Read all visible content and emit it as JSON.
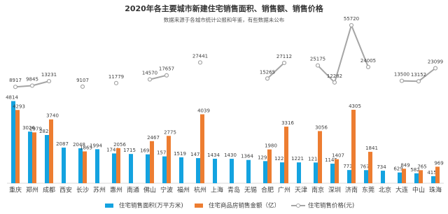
{
  "chart_data": {
    "type": "bar-line",
    "title": "2020年各主要城市新建住宅销售面积、销售额、销售价格",
    "subtitle": "数据来源于各城市统计公报和年鉴，有些数据未公布",
    "categories": [
      "重庆",
      "郑州",
      "成都",
      "西安",
      "长沙",
      "苏州",
      "惠州",
      "南通",
      "佛山",
      "宁波",
      "福州",
      "杭州",
      "上海",
      "青岛",
      "无锡",
      "合肥",
      "广州",
      "天津",
      "南京",
      "深圳",
      "济南",
      "东莞",
      "北京",
      "大连",
      "中山",
      "珠海"
    ],
    "series": [
      {
        "name": "住宅销售面积(万平方米)",
        "color": "#14a3e0",
        "type": "bar",
        "values": [
          4814,
          3026,
          2827,
          2087,
          2048,
          1994,
          1746,
          1715,
          1693,
          1573,
          1519,
          1472,
          1434,
          1430,
          1364,
          1297,
          1223,
          1221,
          1214,
          1145,
          773,
          767,
          734,
          629,
          582,
          415
        ]
      },
      {
        "name": "住宅商品房销售金额（亿）",
        "color": "#ed7d31",
        "type": "bar",
        "values": [
          4293,
          2979,
          3740,
          null,
          1865,
          null,
          2056,
          null,
          2467,
          2775,
          null,
          4039,
          null,
          null,
          null,
          1980,
          3316,
          null,
          3056,
          1407,
          4305,
          1841,
          null,
          849,
          765,
          969
        ]
      },
      {
        "name": "住宅销售价格(元)",
        "color": "#a5a5a5",
        "type": "line",
        "axis": "y2",
        "values": [
          8917,
          9845,
          13231,
          null,
          9107,
          null,
          11779,
          null,
          14570,
          17657,
          null,
          27441,
          null,
          null,
          null,
          15265,
          27112,
          null,
          25175,
          12282,
          55720,
          24005,
          null,
          13500,
          13152,
          23099
        ]
      }
    ],
    "ylim": [
      0,
      5000
    ],
    "y2lim": [
      0,
      60000
    ],
    "grid": false
  }
}
